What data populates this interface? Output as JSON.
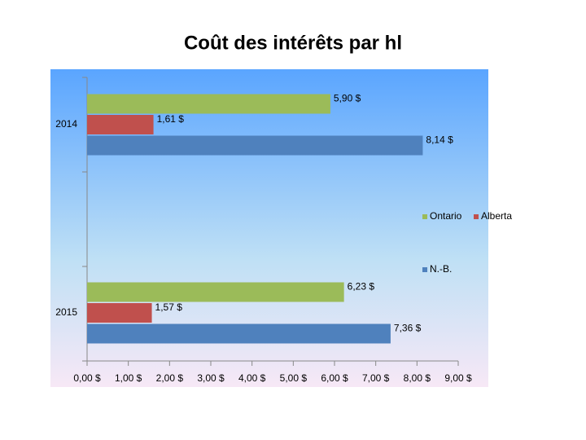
{
  "chart_data": {
    "type": "bar",
    "orientation": "horizontal",
    "title": "Coût des intérêts par hl",
    "categories": [
      "2014",
      "2015"
    ],
    "series": [
      {
        "name": "Ontario",
        "color": "#9bbb59",
        "values": [
          5.9,
          6.23
        ],
        "value_labels": [
          "5,90 $",
          "6,23 $"
        ]
      },
      {
        "name": "Alberta",
        "color": "#c0504d",
        "values": [
          1.61,
          1.57
        ],
        "value_labels": [
          "1,61 $",
          "1,57 $"
        ]
      },
      {
        "name": "N.-B.",
        "color": "#4f81bd",
        "values": [
          8.14,
          7.36
        ],
        "value_labels": [
          "8,14 $",
          "7,36 $"
        ]
      }
    ],
    "xlim": [
      0,
      9
    ],
    "xticks": [
      {
        "value": 0,
        "label": "0,00 $"
      },
      {
        "value": 1,
        "label": "1,00 $"
      },
      {
        "value": 2,
        "label": "2,00 $"
      },
      {
        "value": 3,
        "label": "3,00 $"
      },
      {
        "value": 4,
        "label": "4,00 $"
      },
      {
        "value": 5,
        "label": "5,00 $"
      },
      {
        "value": 6,
        "label": "6,00 $"
      },
      {
        "value": 7,
        "label": "7,00 $"
      },
      {
        "value": 8,
        "label": "8,00 $"
      },
      {
        "value": 9,
        "label": "9,00 $"
      }
    ],
    "legend": "right"
  }
}
